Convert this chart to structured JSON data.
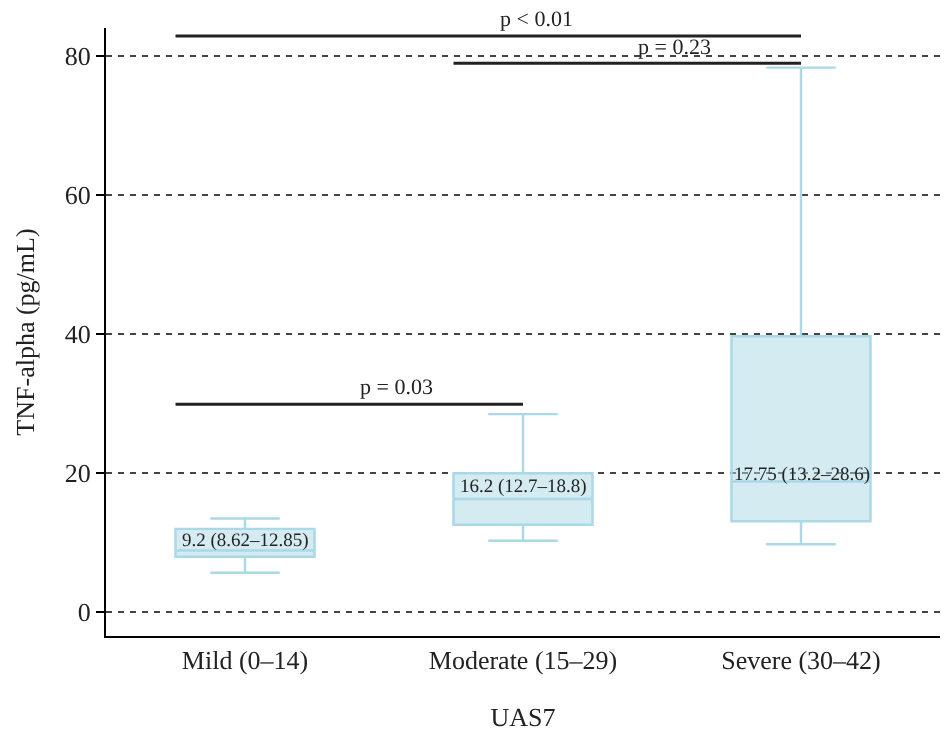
{
  "chart_data": {
    "type": "box",
    "xlabel": "UAS7",
    "ylabel": "TNF-alpha (pg/mL)",
    "categories": [
      "Mild (0–14)",
      "Moderate (15–29)",
      "Severe (30–42)"
    ],
    "boxes": [
      {
        "low": 5.7,
        "q1": 8.0,
        "median": 8.9,
        "q3": 12.0,
        "high": 13.5
      },
      {
        "low": 10.3,
        "q1": 12.6,
        "median": 16.3,
        "q3": 20.0,
        "high": 28.5
      },
      {
        "low": 9.8,
        "q1": 13.1,
        "median": 18.8,
        "q3": 39.7,
        "high": 78.3
      }
    ],
    "color": "#a9d8e6",
    "ylim": [
      -3.4,
      84
    ],
    "yticks": [
      0,
      20,
      40,
      60,
      80
    ],
    "grid": "y",
    "annotations": [
      "9.2 (8.62–12.85)",
      "16.2 (12.7–18.8)",
      "17.75 (13.2–28.6)",
      "p < 0.01",
      "p = 0.23",
      "p = 0.03"
    ]
  }
}
